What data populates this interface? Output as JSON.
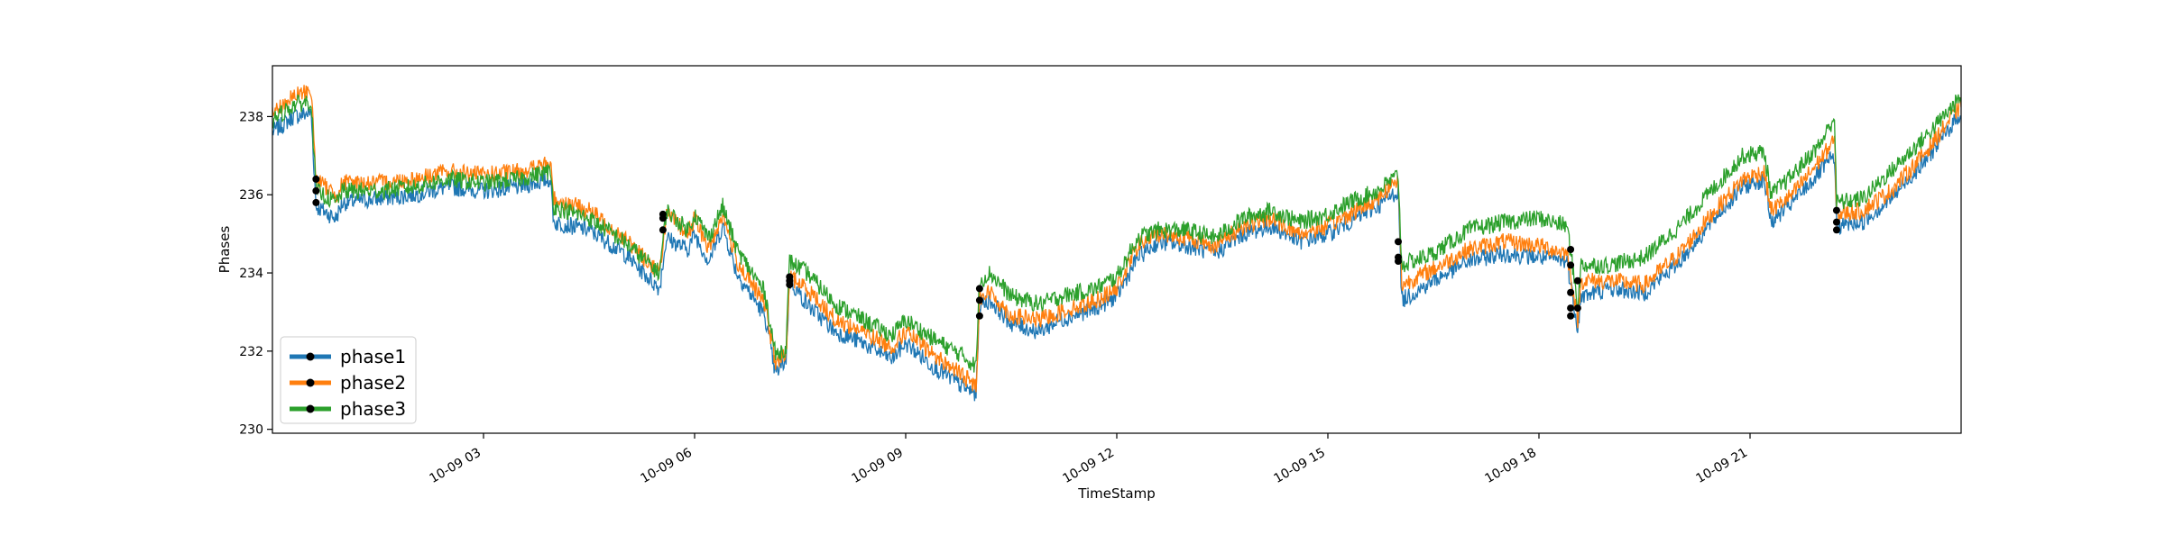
{
  "chart_data": {
    "type": "line",
    "title": "",
    "xlabel": "TimeStamp",
    "ylabel": "Phases",
    "x_unit": "hours since 10-09 00:00",
    "xlim": [
      0,
      24
    ],
    "ylim": [
      229.9,
      239.3
    ],
    "x_ticks": [
      {
        "value": 3,
        "label": "10-09 03"
      },
      {
        "value": 6,
        "label": "10-09 06"
      },
      {
        "value": 9,
        "label": "10-09 09"
      },
      {
        "value": 12,
        "label": "10-09 12"
      },
      {
        "value": 15,
        "label": "10-09 15"
      },
      {
        "value": 18,
        "label": "10-09 18"
      },
      {
        "value": 21,
        "label": "10-09 21"
      }
    ],
    "y_ticks": [
      {
        "value": 230,
        "label": "230"
      },
      {
        "value": 232,
        "label": "232"
      },
      {
        "value": 234,
        "label": "234"
      },
      {
        "value": 236,
        "label": "236"
      },
      {
        "value": 238,
        "label": "238"
      }
    ],
    "grid": false,
    "legend_position": "bottom-left",
    "series": [
      {
        "name": "phase1",
        "color": "#1f77b4",
        "points": [
          [
            0,
            237.6
          ],
          [
            0.3,
            238.0
          ],
          [
            0.55,
            238.1
          ],
          [
            0.62,
            235.7
          ],
          [
            0.9,
            235.4
          ],
          [
            1.0,
            235.8
          ],
          [
            1.5,
            235.9
          ],
          [
            2.0,
            236.0
          ],
          [
            2.5,
            236.2
          ],
          [
            3.0,
            236.1
          ],
          [
            3.5,
            236.2
          ],
          [
            3.95,
            236.4
          ],
          [
            4.0,
            235.3
          ],
          [
            4.5,
            235.1
          ],
          [
            5.0,
            234.5
          ],
          [
            5.5,
            233.6
          ],
          [
            5.6,
            234.9
          ],
          [
            5.9,
            234.6
          ],
          [
            6.0,
            235.0
          ],
          [
            6.2,
            234.3
          ],
          [
            6.4,
            235.2
          ],
          [
            6.6,
            234.0
          ],
          [
            7.0,
            232.9
          ],
          [
            7.15,
            231.4
          ],
          [
            7.3,
            231.8
          ],
          [
            7.35,
            233.8
          ],
          [
            7.6,
            233.2
          ],
          [
            8.0,
            232.5
          ],
          [
            8.4,
            232.2
          ],
          [
            8.8,
            231.8
          ],
          [
            9.0,
            232.2
          ],
          [
            9.4,
            231.6
          ],
          [
            9.8,
            231.1
          ],
          [
            10.0,
            230.9
          ],
          [
            10.05,
            233.2
          ],
          [
            10.2,
            233.3
          ],
          [
            10.5,
            232.7
          ],
          [
            10.9,
            232.5
          ],
          [
            11.2,
            232.8
          ],
          [
            11.7,
            233.1
          ],
          [
            12.0,
            233.4
          ],
          [
            12.3,
            234.4
          ],
          [
            12.6,
            234.8
          ],
          [
            13.0,
            234.7
          ],
          [
            13.4,
            234.5
          ],
          [
            13.8,
            235.0
          ],
          [
            14.2,
            235.2
          ],
          [
            14.6,
            234.8
          ],
          [
            15.0,
            235.0
          ],
          [
            15.3,
            235.3
          ],
          [
            15.7,
            235.7
          ],
          [
            16.0,
            236.1
          ],
          [
            16.05,
            233.3
          ],
          [
            16.5,
            233.8
          ],
          [
            17.0,
            234.3
          ],
          [
            17.5,
            234.5
          ],
          [
            18.0,
            234.4
          ],
          [
            18.4,
            234.3
          ],
          [
            18.55,
            232.6
          ],
          [
            18.6,
            233.4
          ],
          [
            19.0,
            233.6
          ],
          [
            19.5,
            233.5
          ],
          [
            20.0,
            234.3
          ],
          [
            20.5,
            235.4
          ],
          [
            20.9,
            236.2
          ],
          [
            21.2,
            236.4
          ],
          [
            21.3,
            235.3
          ],
          [
            21.6,
            235.8
          ],
          [
            22.0,
            236.6
          ],
          [
            22.2,
            237.0
          ],
          [
            22.23,
            235.2
          ],
          [
            22.6,
            235.3
          ],
          [
            23.0,
            235.9
          ],
          [
            23.5,
            236.9
          ],
          [
            24.0,
            238.1
          ]
        ]
      },
      {
        "name": "phase2",
        "color": "#ff7f0e",
        "points": [
          [
            0,
            238.1
          ],
          [
            0.3,
            238.5
          ],
          [
            0.55,
            238.7
          ],
          [
            0.62,
            236.4
          ],
          [
            0.9,
            236.0
          ],
          [
            1.0,
            236.3
          ],
          [
            1.5,
            236.3
          ],
          [
            2.0,
            236.4
          ],
          [
            2.5,
            236.6
          ],
          [
            3.0,
            236.5
          ],
          [
            3.5,
            236.6
          ],
          [
            3.95,
            236.8
          ],
          [
            4.0,
            235.9
          ],
          [
            4.5,
            235.6
          ],
          [
            5.0,
            234.9
          ],
          [
            5.5,
            234.0
          ],
          [
            5.6,
            235.5
          ],
          [
            5.9,
            235.0
          ],
          [
            6.0,
            235.4
          ],
          [
            6.2,
            234.6
          ],
          [
            6.4,
            235.5
          ],
          [
            6.6,
            234.3
          ],
          [
            7.0,
            233.2
          ],
          [
            7.15,
            231.7
          ],
          [
            7.3,
            231.9
          ],
          [
            7.35,
            233.9
          ],
          [
            7.6,
            233.6
          ],
          [
            8.0,
            232.8
          ],
          [
            8.4,
            232.5
          ],
          [
            8.8,
            232.1
          ],
          [
            9.0,
            232.5
          ],
          [
            9.4,
            231.9
          ],
          [
            9.8,
            231.4
          ],
          [
            10.0,
            231.1
          ],
          [
            10.05,
            233.4
          ],
          [
            10.2,
            233.5
          ],
          [
            10.5,
            232.9
          ],
          [
            10.9,
            232.8
          ],
          [
            11.2,
            233.0
          ],
          [
            11.7,
            233.3
          ],
          [
            12.0,
            233.6
          ],
          [
            12.3,
            234.7
          ],
          [
            12.6,
            235.0
          ],
          [
            13.0,
            234.9
          ],
          [
            13.4,
            234.7
          ],
          [
            13.8,
            235.2
          ],
          [
            14.2,
            235.4
          ],
          [
            14.6,
            235.0
          ],
          [
            15.0,
            235.2
          ],
          [
            15.3,
            235.5
          ],
          [
            15.7,
            235.9
          ],
          [
            16.0,
            236.4
          ],
          [
            16.05,
            233.7
          ],
          [
            16.5,
            234.1
          ],
          [
            17.0,
            234.6
          ],
          [
            17.5,
            234.8
          ],
          [
            18.0,
            234.7
          ],
          [
            18.4,
            234.5
          ],
          [
            18.55,
            232.8
          ],
          [
            18.6,
            233.8
          ],
          [
            19.0,
            233.8
          ],
          [
            19.5,
            233.7
          ],
          [
            20.0,
            234.5
          ],
          [
            20.5,
            235.6
          ],
          [
            20.9,
            236.4
          ],
          [
            21.2,
            236.6
          ],
          [
            21.3,
            235.6
          ],
          [
            21.6,
            236.0
          ],
          [
            22.0,
            236.9
          ],
          [
            22.2,
            237.4
          ],
          [
            22.23,
            235.5
          ],
          [
            22.6,
            235.6
          ],
          [
            23.0,
            236.1
          ],
          [
            23.5,
            237.1
          ],
          [
            24.0,
            238.3
          ]
        ]
      },
      {
        "name": "phase3",
        "color": "#2ca02c",
        "points": [
          [
            0,
            237.9
          ],
          [
            0.3,
            238.3
          ],
          [
            0.55,
            238.4
          ],
          [
            0.62,
            236.1
          ],
          [
            0.9,
            235.8
          ],
          [
            1.0,
            236.1
          ],
          [
            1.5,
            236.1
          ],
          [
            2.0,
            236.2
          ],
          [
            2.5,
            236.4
          ],
          [
            3.0,
            236.3
          ],
          [
            3.5,
            236.4
          ],
          [
            3.95,
            236.6
          ],
          [
            4.0,
            235.7
          ],
          [
            4.5,
            235.4
          ],
          [
            5.0,
            234.8
          ],
          [
            5.5,
            234.0
          ],
          [
            5.6,
            235.6
          ],
          [
            5.9,
            235.1
          ],
          [
            6.0,
            235.5
          ],
          [
            6.2,
            234.9
          ],
          [
            6.4,
            235.7
          ],
          [
            6.6,
            234.6
          ],
          [
            7.0,
            233.5
          ],
          [
            7.15,
            231.9
          ],
          [
            7.3,
            232.1
          ],
          [
            7.35,
            234.3
          ],
          [
            7.6,
            234.0
          ],
          [
            8.0,
            233.2
          ],
          [
            8.4,
            232.8
          ],
          [
            8.8,
            232.4
          ],
          [
            9.0,
            232.8
          ],
          [
            9.4,
            232.3
          ],
          [
            9.8,
            231.9
          ],
          [
            10.0,
            231.6
          ],
          [
            10.05,
            233.8
          ],
          [
            10.2,
            234.0
          ],
          [
            10.5,
            233.4
          ],
          [
            10.9,
            233.2
          ],
          [
            11.2,
            233.4
          ],
          [
            11.7,
            233.6
          ],
          [
            12.0,
            233.9
          ],
          [
            12.3,
            234.9
          ],
          [
            12.6,
            235.1
          ],
          [
            13.0,
            235.1
          ],
          [
            13.4,
            234.9
          ],
          [
            13.8,
            235.4
          ],
          [
            14.2,
            235.6
          ],
          [
            14.6,
            235.3
          ],
          [
            15.0,
            235.5
          ],
          [
            15.3,
            235.8
          ],
          [
            15.7,
            236.1
          ],
          [
            16.0,
            236.5
          ],
          [
            16.05,
            234.2
          ],
          [
            16.5,
            234.5
          ],
          [
            17.0,
            235.1
          ],
          [
            17.5,
            235.3
          ],
          [
            18.0,
            235.4
          ],
          [
            18.4,
            235.2
          ],
          [
            18.55,
            233.2
          ],
          [
            18.6,
            234.2
          ],
          [
            19.0,
            234.2
          ],
          [
            19.5,
            234.4
          ],
          [
            20.0,
            235.2
          ],
          [
            20.5,
            236.2
          ],
          [
            20.9,
            237.0
          ],
          [
            21.2,
            237.1
          ],
          [
            21.3,
            236.0
          ],
          [
            21.6,
            236.5
          ],
          [
            22.0,
            237.3
          ],
          [
            22.2,
            238.0
          ],
          [
            22.23,
            235.8
          ],
          [
            22.6,
            235.9
          ],
          [
            23.0,
            236.6
          ],
          [
            23.5,
            237.5
          ],
          [
            24.0,
            238.5
          ]
        ]
      }
    ],
    "markers": [
      {
        "series": "phase1",
        "x": 0.62,
        "y": 235.8
      },
      {
        "series": "phase2",
        "x": 0.62,
        "y": 236.4
      },
      {
        "series": "phase3",
        "x": 0.62,
        "y": 236.1
      },
      {
        "series": "phase1",
        "x": 5.55,
        "y": 235.1
      },
      {
        "series": "phase2",
        "x": 5.55,
        "y": 235.5
      },
      {
        "series": "phase3",
        "x": 5.55,
        "y": 235.4
      },
      {
        "series": "phase1",
        "x": 7.35,
        "y": 233.7
      },
      {
        "series": "phase2",
        "x": 7.35,
        "y": 233.8
      },
      {
        "series": "phase3",
        "x": 7.35,
        "y": 233.9
      },
      {
        "series": "phase1",
        "x": 10.05,
        "y": 232.9
      },
      {
        "series": "phase2",
        "x": 10.05,
        "y": 233.3
      },
      {
        "series": "phase3",
        "x": 10.05,
        "y": 233.6
      },
      {
        "series": "phase1",
        "x": 16.0,
        "y": 234.3
      },
      {
        "series": "phase2",
        "x": 16.0,
        "y": 234.4
      },
      {
        "series": "phase3",
        "x": 16.0,
        "y": 234.8
      },
      {
        "series": "phase1",
        "x": 18.45,
        "y": 233.1
      },
      {
        "series": "phase2",
        "x": 18.45,
        "y": 232.9
      },
      {
        "series": "phase3",
        "x": 18.45,
        "y": 233.5
      },
      {
        "series": "phase1",
        "x": 18.55,
        "y": 233.1
      },
      {
        "series": "phase2",
        "x": 18.45,
        "y": 234.2
      },
      {
        "series": "phase3",
        "x": 18.45,
        "y": 234.6
      },
      {
        "series": "phase3",
        "x": 18.55,
        "y": 233.8
      },
      {
        "series": "phase1",
        "x": 22.23,
        "y": 235.1
      },
      {
        "series": "phase2",
        "x": 22.23,
        "y": 235.3
      },
      {
        "series": "phase3",
        "x": 22.23,
        "y": 235.6
      }
    ]
  }
}
